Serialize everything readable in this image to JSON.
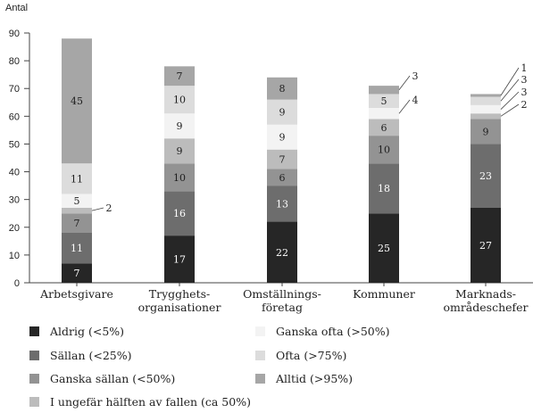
{
  "chart_data": {
    "type": "bar",
    "stacked": true,
    "ylabel": "Antal",
    "ylim": [
      0,
      90
    ],
    "yticks": [
      0,
      10,
      20,
      30,
      40,
      50,
      60,
      70,
      80,
      90
    ],
    "categories": [
      [
        "Arbetsgivare"
      ],
      [
        "Trygghets-",
        "organisationer"
      ],
      [
        "Omställnings-",
        "företag"
      ],
      [
        "Kommuner"
      ],
      [
        "Marknads-",
        "områdeschefer"
      ]
    ],
    "series": [
      {
        "name": "Aldrig (<5%)",
        "color": "#262626",
        "label_color": "#ffffff",
        "values": [
          7,
          17,
          22,
          25,
          27
        ]
      },
      {
        "name": "Sällan (<25%)",
        "color": "#6d6d6d",
        "label_color": "#ffffff",
        "values": [
          11,
          16,
          13,
          18,
          23
        ]
      },
      {
        "name": "Ganska sällan (<50%)",
        "color": "#939393",
        "label_color": "#1e1e1e",
        "values": [
          7,
          10,
          6,
          10,
          9
        ]
      },
      {
        "name": "I ungefär hälften av fallen (ca 50%)",
        "color": "#bcbcbc",
        "label_color": "#1e1e1e",
        "values": [
          2,
          9,
          7,
          6,
          2
        ]
      },
      {
        "name": "Ganska ofta (>50%)",
        "color": "#f3f3f3",
        "label_color": "#1e1e1e",
        "values": [
          5,
          9,
          9,
          4,
          3
        ]
      },
      {
        "name": "Ofta (>75%)",
        "color": "#dcdcdc",
        "label_color": "#1e1e1e",
        "values": [
          11,
          10,
          9,
          5,
          3
        ]
      },
      {
        "name": "Alltid (>95%)",
        "color": "#a6a6a6",
        "label_color": "#1e1e1e",
        "values": [
          45,
          7,
          8,
          3,
          1
        ]
      }
    ],
    "legend_position": "bottom",
    "grid": false
  }
}
